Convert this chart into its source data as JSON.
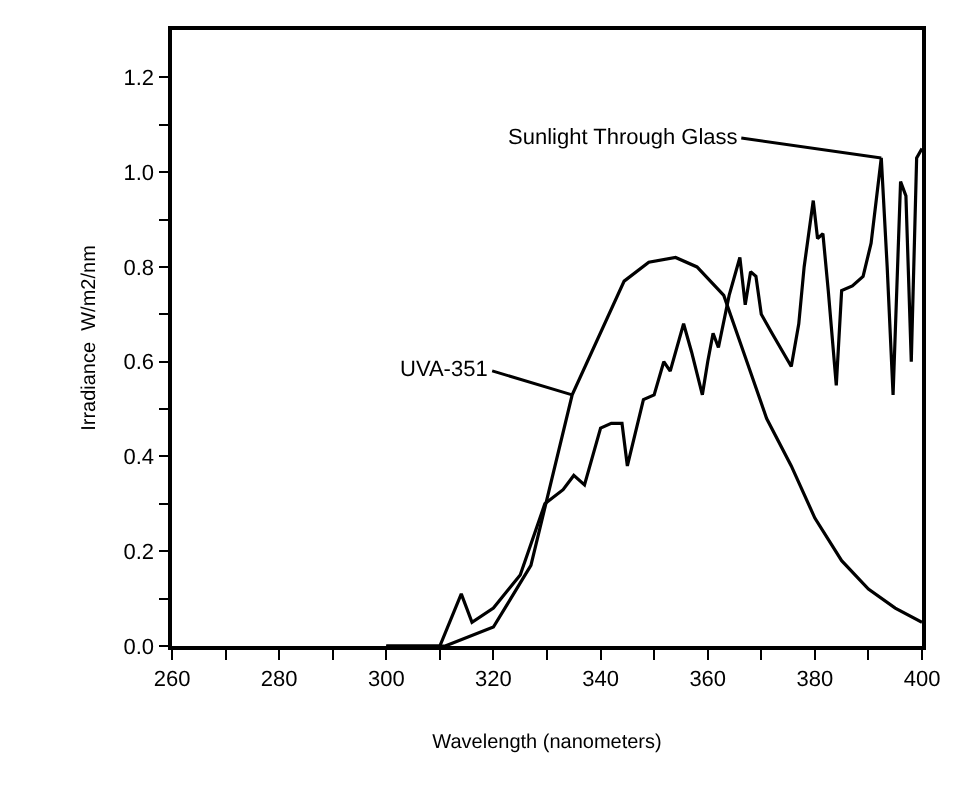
{
  "chart_data": {
    "type": "line",
    "xlabel": "Wavelength (nanometers)",
    "ylabel": "Irradiance  W/m2/nm",
    "xlim": [
      260,
      400
    ],
    "ylim": [
      0,
      1.3
    ],
    "xticks": [
      260,
      {
        "value": 270,
        "label": null
      },
      280,
      {
        "value": 290,
        "label": null
      },
      300,
      {
        "value": 310,
        "label": null
      },
      320,
      {
        "value": 330,
        "label": null
      },
      340,
      {
        "value": 350,
        "label": null
      },
      360,
      {
        "value": 370,
        "label": null
      },
      380,
      {
        "value": 390,
        "label": null
      },
      400
    ],
    "yticks": [
      {
        "value": 0,
        "label": "0.0"
      },
      {
        "value": 0.1,
        "label": null
      },
      0.2,
      {
        "value": 0.3,
        "label": null
      },
      0.4,
      {
        "value": 0.5,
        "label": null
      },
      0.6,
      {
        "value": 0.7,
        "label": null
      },
      0.8,
      {
        "value": 0.9,
        "label": null
      },
      {
        "value": 1.0,
        "label": "1.0"
      },
      {
        "value": 1.1,
        "label": null
      },
      1.2
    ],
    "marker": "none",
    "line_style": "solid",
    "series": [
      {
        "color": "#000000",
        "x": [
          300,
          311,
          320,
          327,
          334.7,
          344.4,
          349,
          354,
          358,
          363,
          366.7,
          371,
          375.6,
          380,
          385,
          390,
          395,
          400
        ],
        "values": [
          0,
          0,
          0.04,
          0.17,
          0.53,
          0.77,
          0.81,
          0.82,
          0.8,
          0.74,
          0.62,
          0.48,
          0.38,
          0.27,
          0.18,
          0.12,
          0.08,
          0.05
        ]
      },
      {
        "color": "#000000",
        "x": [
          300,
          310,
          314,
          316,
          320,
          325,
          329.6,
          333,
          335,
          337,
          340,
          342,
          344,
          345,
          348,
          350,
          351.8,
          353,
          355.5,
          357,
          359,
          360,
          361,
          362,
          364,
          366,
          367,
          368,
          369,
          370,
          372,
          375.6,
          377,
          378,
          379.7,
          380.5,
          381.5,
          382.5,
          384,
          385,
          387,
          389,
          390.5,
          392.4,
          393.5,
          394.6,
          396,
          397,
          398,
          399,
          400
        ],
        "values": [
          0,
          0,
          0.11,
          0.05,
          0.08,
          0.15,
          0.3,
          0.33,
          0.36,
          0.34,
          0.46,
          0.47,
          0.47,
          0.38,
          0.52,
          0.53,
          0.6,
          0.58,
          0.68,
          0.62,
          0.53,
          0.6,
          0.66,
          0.63,
          0.74,
          0.82,
          0.72,
          0.79,
          0.78,
          0.7,
          0.66,
          0.59,
          0.68,
          0.8,
          0.94,
          0.86,
          0.87,
          0.75,
          0.55,
          0.75,
          0.76,
          0.78,
          0.85,
          1.03,
          0.8,
          0.53,
          0.98,
          0.95,
          0.6,
          1.03,
          1.05
        ]
      }
    ],
    "annotations": [
      {
        "text": "Sunlight Through Glass",
        "x": 392.4,
        "y": 1.03
      },
      {
        "text": "UVA-351",
        "x": 334.7,
        "y": 0.53
      }
    ]
  }
}
